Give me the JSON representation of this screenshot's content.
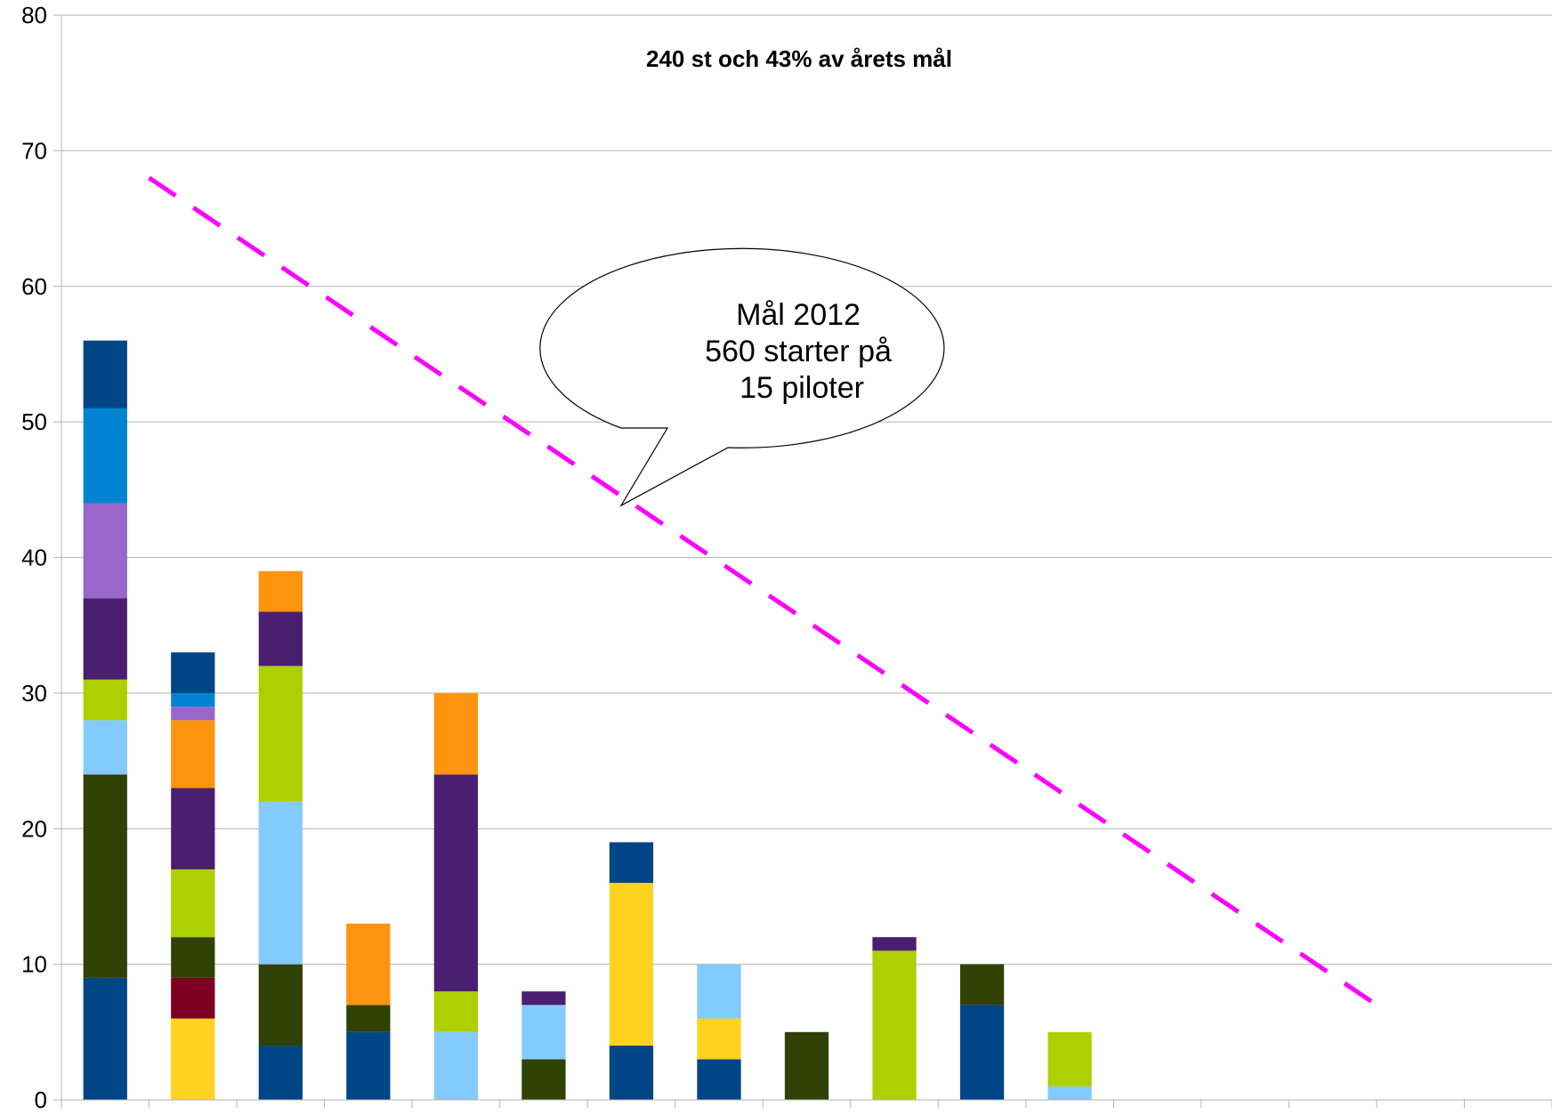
{
  "chart_data": {
    "type": "bar",
    "stacked": true,
    "title": "240 st och 43% av årets mål",
    "xlabel": "",
    "ylabel": "",
    "ylim": [
      0,
      80
    ],
    "yticks": [
      "0",
      "10",
      "20",
      "30",
      "40",
      "50",
      "60",
      "70",
      "80"
    ],
    "grid": true,
    "category_count": 17,
    "stacks": [
      [
        {
          "value": 9,
          "color": "#004586"
        },
        {
          "value": 15,
          "color": "#314004"
        },
        {
          "value": 4,
          "color": "#83caff"
        },
        {
          "value": 3,
          "color": "#aecf00"
        },
        {
          "value": 6,
          "color": "#4b1f6f"
        },
        {
          "value": 7,
          "color": "#9966cc"
        },
        {
          "value": 7,
          "color": "#0084d1"
        },
        {
          "value": 5,
          "color": "#004586"
        }
      ],
      [
        {
          "value": 6,
          "color": "#ffd320"
        },
        {
          "value": 3,
          "color": "#7e0021"
        },
        {
          "value": 3,
          "color": "#314004"
        },
        {
          "value": 5,
          "color": "#aecf00"
        },
        {
          "value": 6,
          "color": "#4b1f6f"
        },
        {
          "value": 5,
          "color": "#ff950e"
        },
        {
          "value": 1,
          "color": "#9966cc"
        },
        {
          "value": 1,
          "color": "#0084d1"
        },
        {
          "value": 3,
          "color": "#004586"
        }
      ],
      [
        {
          "value": 4,
          "color": "#004586"
        },
        {
          "value": 6,
          "color": "#314004"
        },
        {
          "value": 12,
          "color": "#83caff"
        },
        {
          "value": 10,
          "color": "#aecf00"
        },
        {
          "value": 4,
          "color": "#4b1f6f"
        },
        {
          "value": 3,
          "color": "#ff950e"
        }
      ],
      [
        {
          "value": 5,
          "color": "#004586"
        },
        {
          "value": 2,
          "color": "#314004"
        },
        {
          "value": 6,
          "color": "#ff950e"
        }
      ],
      [
        {
          "value": 5,
          "color": "#83caff"
        },
        {
          "value": 3,
          "color": "#aecf00"
        },
        {
          "value": 16,
          "color": "#4b1f6f"
        },
        {
          "value": 6,
          "color": "#ff950e"
        }
      ],
      [
        {
          "value": 3,
          "color": "#314004"
        },
        {
          "value": 4,
          "color": "#83caff"
        },
        {
          "value": 1,
          "color": "#4b1f6f"
        }
      ],
      [
        {
          "value": 4,
          "color": "#004586"
        },
        {
          "value": 12,
          "color": "#ffd320"
        },
        {
          "value": 3,
          "color": "#004586"
        }
      ],
      [
        {
          "value": 3,
          "color": "#004586"
        },
        {
          "value": 3,
          "color": "#ffd320"
        },
        {
          "value": 4,
          "color": "#83caff"
        }
      ],
      [
        {
          "value": 5,
          "color": "#314004"
        }
      ],
      [
        {
          "value": 11,
          "color": "#aecf00"
        },
        {
          "value": 1,
          "color": "#4b1f6f"
        }
      ],
      [
        {
          "value": 7,
          "color": "#004586"
        },
        {
          "value": 3,
          "color": "#314004"
        }
      ],
      [
        {
          "value": 1,
          "color": "#83caff"
        },
        {
          "value": 4,
          "color": "#aecf00"
        }
      ],
      [],
      [],
      [],
      [],
      []
    ],
    "goal_line": {
      "start": {
        "x": 1,
        "y": 68
      },
      "end": {
        "x": 15,
        "y": 7
      },
      "color": "#ff00ff",
      "style": "dashed"
    },
    "annotation": {
      "lines": [
        "Mål 2012",
        "560 starter på",
        "15 piloter"
      ]
    }
  }
}
